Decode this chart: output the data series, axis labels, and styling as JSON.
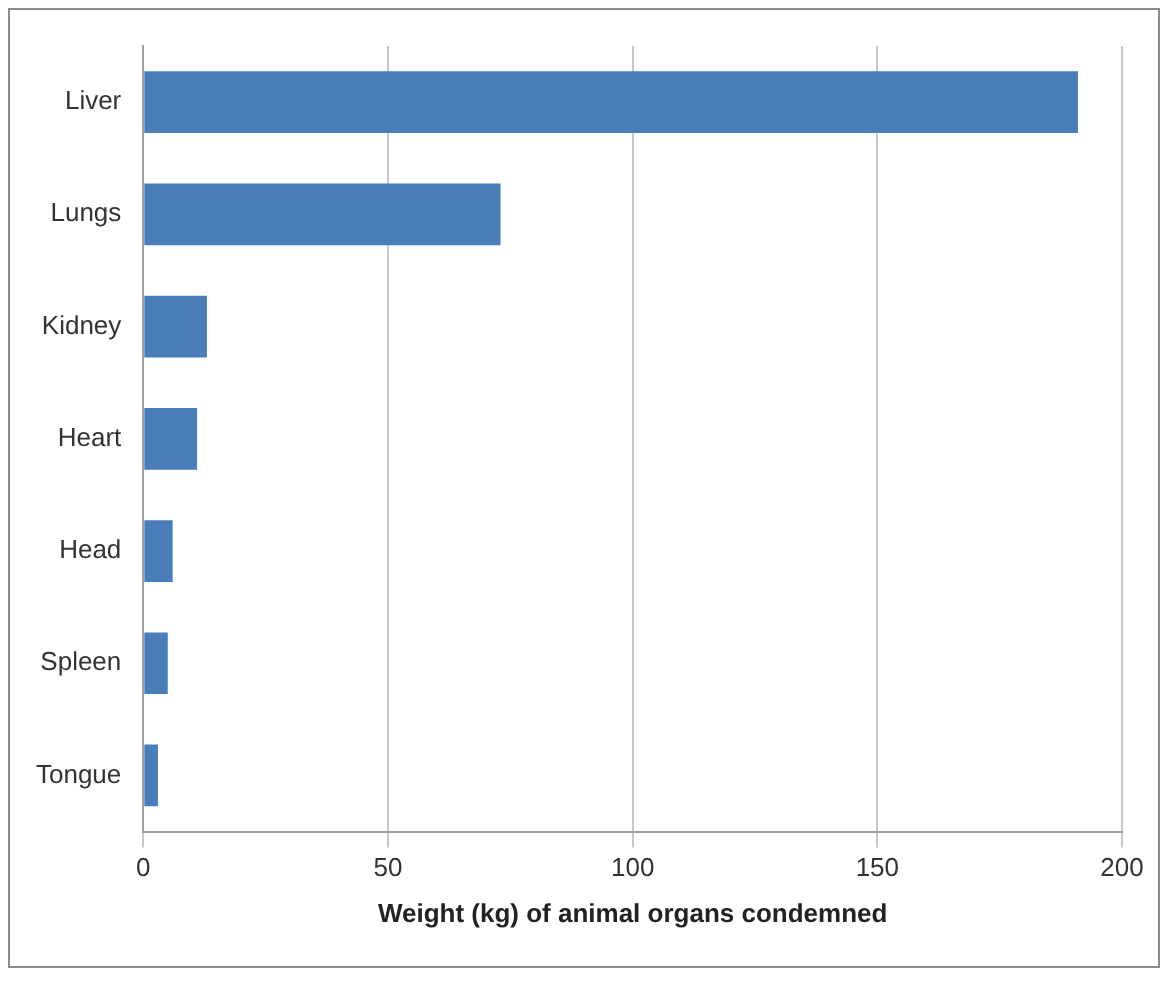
{
  "chart_data": {
    "type": "bar",
    "orientation": "horizontal",
    "xlabel": "Weight (kg) of animal organs condemned",
    "categories": [
      "Liver",
      "Lungs",
      "Kidney",
      "Heart",
      "Head",
      "Spleen",
      "Tongue"
    ],
    "values": [
      191,
      73,
      13,
      11,
      6,
      5,
      3
    ],
    "color": "#4a7ebb",
    "xlim": [
      0,
      200
    ],
    "xticks": [
      0,
      50,
      100,
      150,
      200
    ],
    "grid": "x",
    "legend": false
  }
}
